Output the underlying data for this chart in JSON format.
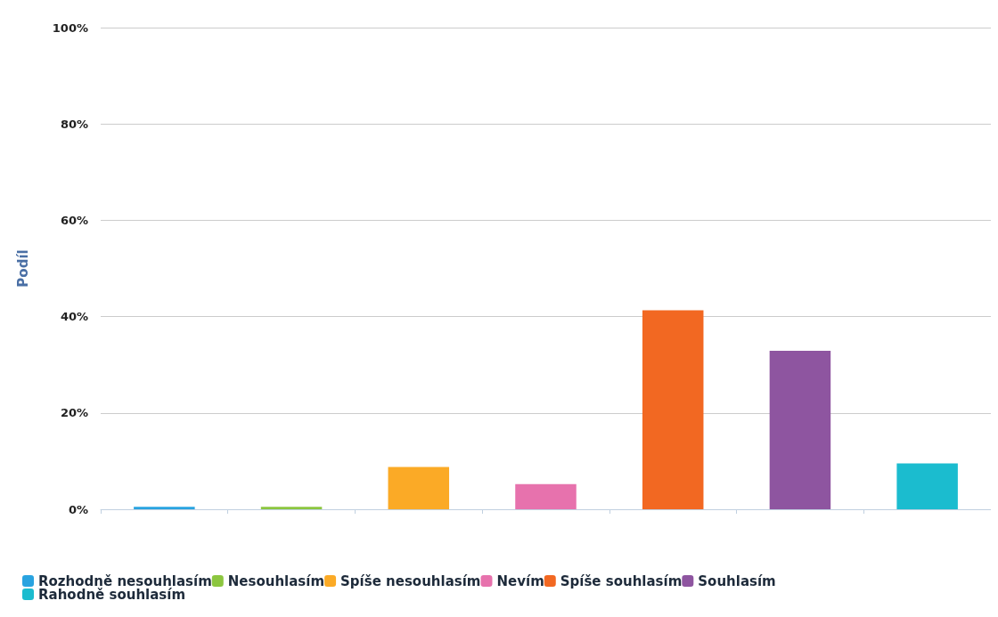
{
  "chart_data": {
    "type": "bar",
    "ylabel": "Podíl",
    "categories": [
      null,
      null,
      null,
      null,
      null,
      null,
      null
    ],
    "series": [
      {
        "name": "Rozhodně nesouhlasím",
        "color": "#29a3e0",
        "values": [
          0.5,
          null,
          null,
          null,
          null,
          null,
          null
        ]
      },
      {
        "name": "Nesouhlasím",
        "color": "#8cc63f",
        "values": [
          null,
          0.5,
          null,
          null,
          null,
          null,
          null
        ]
      },
      {
        "name": "Spíše nesouhlasím",
        "color": "#fbaa26",
        "values": [
          null,
          null,
          8.8,
          null,
          null,
          null,
          null
        ]
      },
      {
        "name": "Nevím",
        "color": "#e772ad",
        "values": [
          null,
          null,
          null,
          5.2,
          null,
          null,
          null
        ]
      },
      {
        "name": "Spíše souhlasím",
        "color": "#f26822",
        "values": [
          null,
          null,
          null,
          null,
          41.3,
          null,
          null
        ]
      },
      {
        "name": "Souhlasím",
        "color": "#8e55a0",
        "values": [
          null,
          null,
          null,
          null,
          null,
          32.9,
          null
        ]
      },
      {
        "name": "Rahodně souhlasím",
        "color": "#1bbccf",
        "values": [
          null,
          null,
          null,
          null,
          null,
          null,
          9.5
        ]
      }
    ],
    "ylim": [
      0,
      100
    ],
    "yticks": [
      {
        "value": 0,
        "label": "0%"
      },
      {
        "value": 20,
        "label": "20%"
      },
      {
        "value": 40,
        "label": "40%"
      },
      {
        "value": 60,
        "label": "60%"
      },
      {
        "value": 80,
        "label": "80%"
      },
      {
        "value": 100,
        "label": "100%"
      }
    ],
    "grid": "y",
    "legend": "bottom"
  }
}
